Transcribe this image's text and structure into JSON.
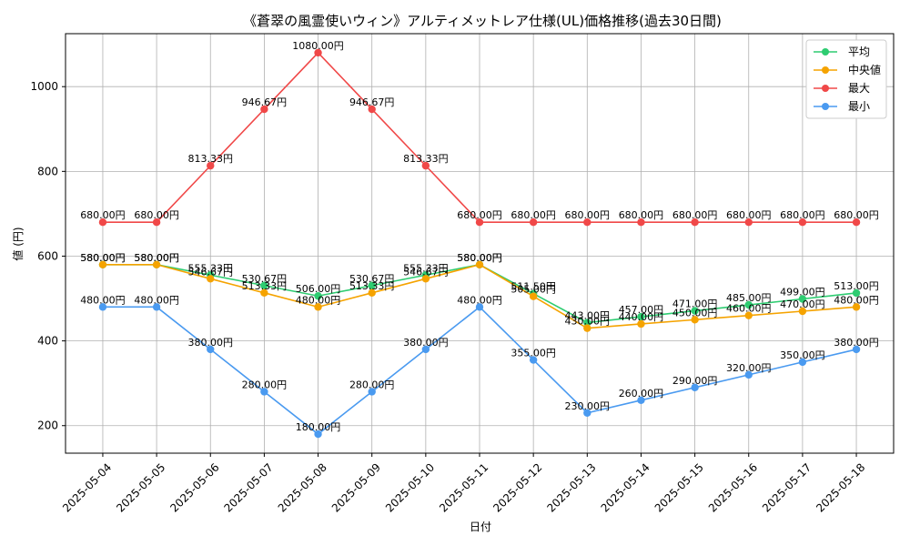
{
  "chart_data": {
    "type": "line",
    "title": "《蒼翠の風霊使いウィン》アルティメットレア仕様(UL)価格推移(過去30日間)",
    "xlabel": "日付",
    "ylabel": "値 (円)",
    "ylim": [
      135,
      1125
    ],
    "yticks": [
      200,
      400,
      600,
      800,
      1000
    ],
    "grid": true,
    "legend_position": "top-right",
    "categories": [
      "2025-05-04",
      "2025-05-05",
      "2025-05-06",
      "2025-05-07",
      "2025-05-08",
      "2025-05-09",
      "2025-05-10",
      "2025-05-11",
      "2025-05-12",
      "2025-05-13",
      "2025-05-14",
      "2025-05-15",
      "2025-05-16",
      "2025-05-17",
      "2025-05-18"
    ],
    "series": [
      {
        "name": "平均",
        "color": "#2ecc71",
        "values": [
          580.0,
          580.0,
          555.33,
          530.67,
          506.0,
          530.67,
          555.33,
          580.0,
          511.5,
          443.0,
          457.0,
          471.0,
          485.0,
          499.0,
          513.0
        ],
        "labels": [
          "580.00円",
          "580.00円",
          "555.33円",
          "530.67円",
          "506.00円",
          "530.67円",
          "555.33円",
          "580.00円",
          "511.50円",
          "443.00円",
          "457.00円",
          "471.00円",
          "485.00円",
          "499.00円",
          "513.00円"
        ]
      },
      {
        "name": "中央値",
        "color": "#f5a300",
        "values": [
          580.0,
          580.0,
          546.67,
          513.33,
          480.0,
          513.33,
          546.67,
          580.0,
          505.0,
          430.0,
          440.0,
          450.0,
          460.0,
          470.0,
          480.0
        ],
        "labels": [
          "580.00円",
          "580.00円",
          "546.67円",
          "513.33円",
          "480.00円",
          "513.33円",
          "546.67円",
          "580.00円",
          "505.00円",
          "430.00円",
          "440.00円",
          "450.00円",
          "460.00円",
          "470.00円",
          "480.00円"
        ]
      },
      {
        "name": "最大",
        "color": "#f04848",
        "values": [
          680.0,
          680.0,
          813.33,
          946.67,
          1080.0,
          946.67,
          813.33,
          680.0,
          680.0,
          680.0,
          680.0,
          680.0,
          680.0,
          680.0,
          680.0
        ],
        "labels": [
          "680.00円",
          "680.00円",
          "813.33円",
          "946.67円",
          "1080.00円",
          "946.67円",
          "813.33円",
          "680.00円",
          "680.00円",
          "680.00円",
          "680.00円",
          "680.00円",
          "680.00円",
          "680.00円",
          "680.00円"
        ]
      },
      {
        "name": "最小",
        "color": "#4a9af0",
        "values": [
          480.0,
          480.0,
          380.0,
          280.0,
          180.0,
          280.0,
          380.0,
          480.0,
          355.0,
          230.0,
          260.0,
          290.0,
          320.0,
          350.0,
          380.0
        ],
        "labels": [
          "480.00円",
          "480.00円",
          "380.00円",
          "280.00円",
          "180.00円",
          "280.00円",
          "380.00円",
          "480.00円",
          "355.00円",
          "230.00円",
          "260.00円",
          "290.00円",
          "320.00円",
          "350.00円",
          "380.00円"
        ]
      }
    ]
  }
}
